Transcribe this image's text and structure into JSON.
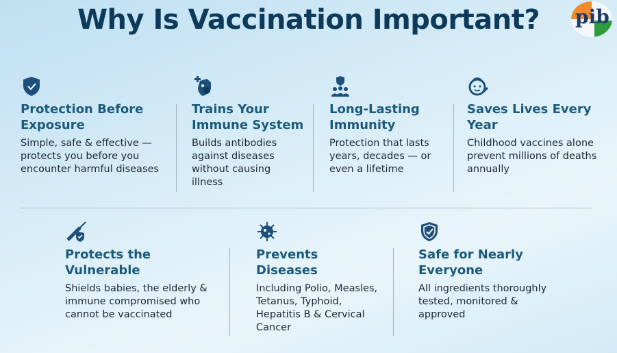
{
  "title": "Why Is Vaccination Important?",
  "logo": {
    "text": "pib",
    "colors": [
      "#f08a2a",
      "#2f9a3a",
      "#1d3a6a"
    ]
  },
  "colors": {
    "title": "#0d3a5a",
    "heading": "#1b5a7c",
    "icon": "#1d4f7c"
  },
  "cards": [
    {
      "icon": "shield-check-icon",
      "heading": "Protection Before Exposure",
      "body": "Simple, safe & effective — protects you before you encounter harmful diseases"
    },
    {
      "icon": "immune-shield-virus-icon",
      "heading": "Trains Your Immune System",
      "body": "Builds antibodies against diseases without causing illness"
    },
    {
      "icon": "people-shield-icon",
      "heading": "Long-Lasting Immunity",
      "body": "Protection that lasts years, decades — or even a lifetime"
    },
    {
      "icon": "child-face-icon",
      "heading": "Saves Lives Every Year",
      "body": "Childhood vaccines alone prevent millions of deaths annually"
    },
    {
      "icon": "syringe-shield-icon",
      "heading": "Protects the Vulnerable",
      "body": "Shields babies, the elderly & immune compromised who cannot be vaccinated"
    },
    {
      "icon": "virus-icon",
      "heading": "Prevents Diseases",
      "body": "Including Polio, Measles, Tetanus, Typhoid, Hepatitis B & Cervical Cancer"
    },
    {
      "icon": "shield-check-icon",
      "heading": "Safe for Nearly Everyone",
      "body": "All ingredients thoroughly tested, monitored & approved"
    }
  ]
}
